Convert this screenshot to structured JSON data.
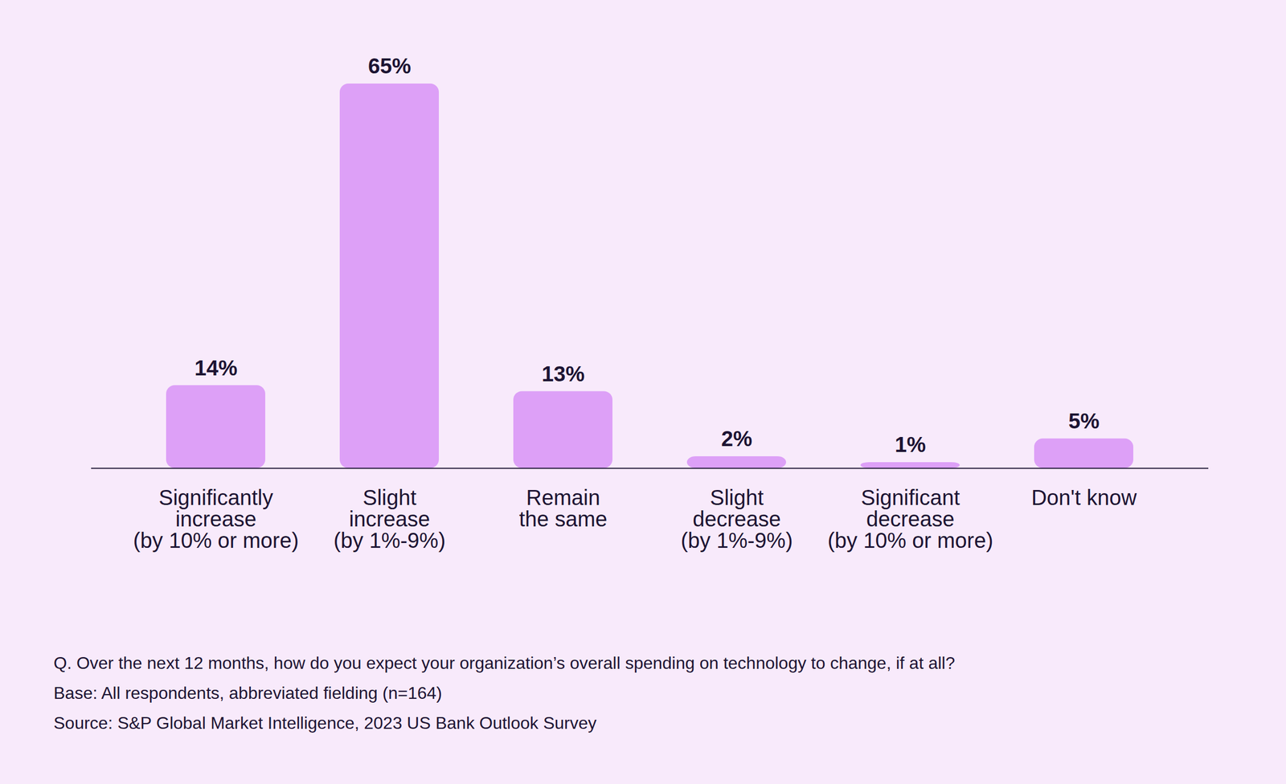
{
  "chart_data": {
    "type": "bar",
    "categories": [
      "Significantly\nincrease\n(by 10% or more)",
      "Slight\nincrease\n(by 1%-9%)",
      "Remain\nthe same",
      "Slight\ndecrease\n(by 1%-9%)",
      "Significant\ndecrease\n(by 10% or more)",
      "Don't know"
    ],
    "values": [
      14,
      65,
      13,
      2,
      1,
      5
    ],
    "value_labels": [
      "14%",
      "65%",
      "13%",
      "2%",
      "1%",
      "5%"
    ],
    "color": "#dda0f7",
    "ylim": [
      0,
      65
    ],
    "data_labels": true,
    "tick_labels": "x",
    "notes": [
      "Q. Over the next 12 months, how do you expect your organization’s overall spending on technology to change, if at all?",
      "Base: All respondents, abbreviated fielding (n=164)",
      "Source: S&P Global Market Intelligence, 2023 US Bank Outlook Survey"
    ]
  }
}
